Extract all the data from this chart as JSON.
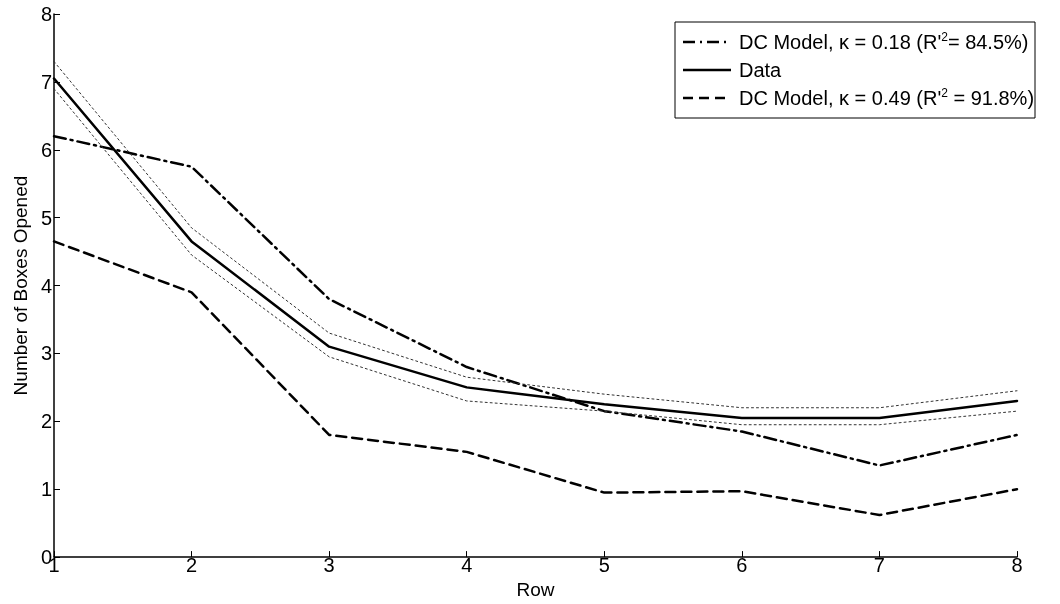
{
  "chart_data": {
    "type": "line",
    "xlabel": "Row",
    "ylabel": "Number of Boxes Opened",
    "x": [
      1,
      2,
      3,
      4,
      5,
      6,
      7,
      8
    ],
    "xlim": [
      1,
      8
    ],
    "xticks": [
      1,
      2,
      3,
      4,
      5,
      6,
      7,
      8
    ],
    "ylim": [
      0,
      8
    ],
    "yticks": [
      0,
      1,
      2,
      3,
      4,
      5,
      6,
      7,
      8
    ],
    "grid": false,
    "legend": "top right",
    "marker": "none",
    "series": [
      {
        "name": "DC Model, κ = 0.18 (R'$^{2}$= 84.5%)",
        "color": "#000000",
        "line_style": "dashdot",
        "values": [
          6.2,
          5.75,
          3.8,
          2.8,
          2.15,
          1.85,
          1.35,
          1.8
        ]
      },
      {
        "name": "Data",
        "color": "#000000",
        "line_style": "solid",
        "values": [
          7.05,
          4.65,
          3.1,
          2.5,
          2.25,
          2.05,
          2.05,
          2.3
        ]
      },
      {
        "name": "DC Model, κ = 0.49 (R'$^{2}$ = 91.8%)",
        "color": "#000000",
        "line_style": "dashed",
        "values": [
          4.65,
          3.9,
          1.8,
          1.55,
          0.95,
          0.97,
          0.62,
          1.0
        ]
      },
      {
        "color": "#333333",
        "line_style": "dotted",
        "values": [
          7.3,
          4.85,
          3.3,
          2.65,
          2.4,
          2.2,
          2.2,
          2.45
        ]
      },
      {
        "color": "#333333",
        "line_style": "dotted",
        "values": [
          6.9,
          4.45,
          2.95,
          2.3,
          2.15,
          1.95,
          1.95,
          2.15
        ]
      }
    ]
  }
}
